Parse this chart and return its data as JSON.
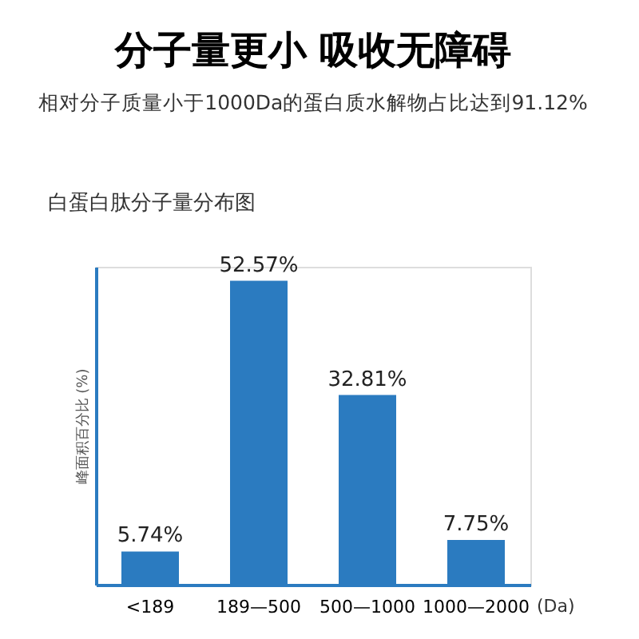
{
  "chart_data": {
    "type": "bar",
    "title": "分子量更小 吸收无障碍",
    "subtitle": "相对分子质量小于1000Da的蛋白质水解物占比达到91.12%",
    "annotations": [
      "白蛋白肽分子量分布图"
    ],
    "categories": [
      "<189",
      "189—500",
      "500—1000",
      "1000—2000"
    ],
    "values": [
      5.74,
      52.57,
      32.81,
      7.75
    ],
    "value_labels": [
      "5.74%",
      "52.57%",
      "32.81%",
      "7.75%"
    ],
    "color": "#2b7bc0",
    "ylabel": "峰面积百分比 (%)",
    "xlabel": "(Da)"
  }
}
